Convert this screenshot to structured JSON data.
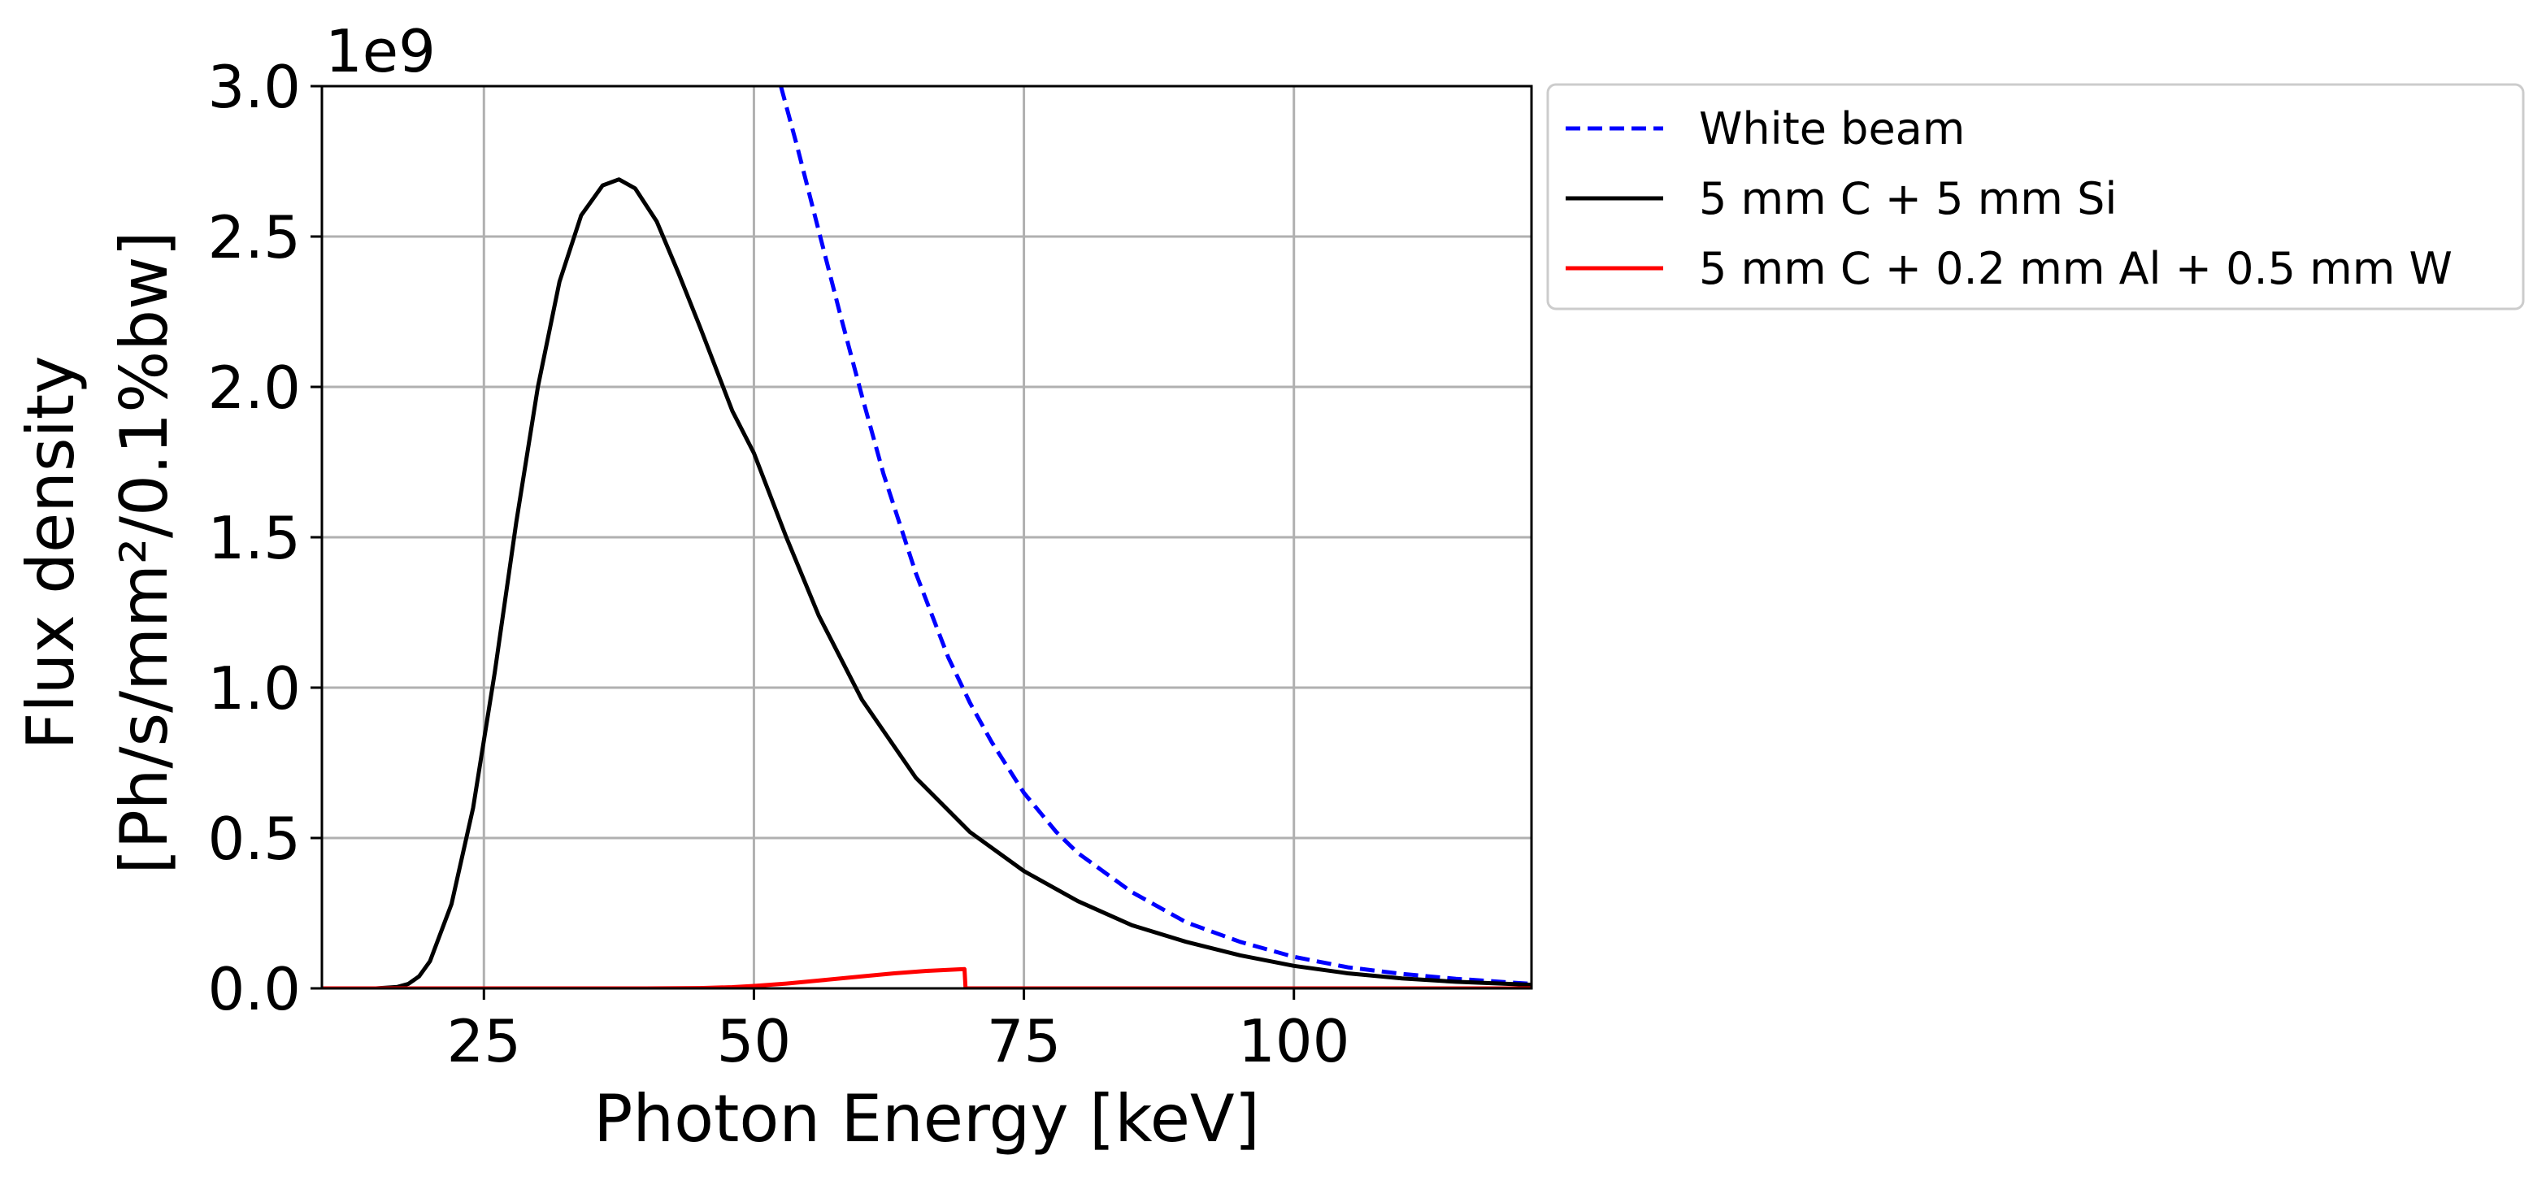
{
  "chart_data": {
    "type": "line",
    "xlabel": "Photon Energy [keV]",
    "ylabel_line1": "Flux density",
    "ylabel_line2": "[Ph/s/mm²/0.1%bw]",
    "y_offset_label": "1e9",
    "xlim": [
      10,
      122
    ],
    "ylim": [
      0,
      3.0
    ],
    "x_ticks": [
      25,
      50,
      75,
      100
    ],
    "x_tick_labels": [
      "25",
      "50",
      "75",
      "100"
    ],
    "y_ticks": [
      0.0,
      0.5,
      1.0,
      1.5,
      2.0,
      2.5,
      3.0
    ],
    "y_tick_labels": [
      "0.0",
      "0.5",
      "1.0",
      "1.5",
      "2.0",
      "2.5",
      "3.0"
    ],
    "grid": true,
    "legend_position": "outside-top-right",
    "series": [
      {
        "name": "White beam",
        "color": "#0000ff",
        "style": "dashed",
        "x": [
          52.5,
          54,
          56,
          58,
          60,
          62,
          65,
          68,
          70,
          72,
          75,
          78,
          80,
          85,
          90,
          95,
          100,
          105,
          110,
          115,
          122
        ],
        "y": [
          3.0,
          2.8,
          2.52,
          2.24,
          1.97,
          1.71,
          1.38,
          1.1,
          0.95,
          0.82,
          0.65,
          0.52,
          0.45,
          0.32,
          0.22,
          0.155,
          0.105,
          0.07,
          0.048,
          0.032,
          0.015
        ]
      },
      {
        "name": "5 mm C + 5 mm Si",
        "color": "#000000",
        "style": "solid",
        "x": [
          10,
          15,
          17,
          18,
          19,
          20,
          22,
          24,
          26,
          28,
          30,
          32,
          34,
          36,
          37.5,
          39,
          41,
          43,
          45,
          48,
          50,
          53,
          56,
          60,
          65,
          70,
          75,
          80,
          85,
          90,
          95,
          100,
          105,
          110,
          115,
          122
        ],
        "y": [
          0.0,
          0.0,
          0.005,
          0.015,
          0.04,
          0.09,
          0.28,
          0.6,
          1.05,
          1.55,
          2.0,
          2.35,
          2.57,
          2.67,
          2.69,
          2.66,
          2.55,
          2.38,
          2.2,
          1.92,
          1.78,
          1.5,
          1.24,
          0.96,
          0.7,
          0.52,
          0.39,
          0.29,
          0.21,
          0.155,
          0.11,
          0.075,
          0.05,
          0.033,
          0.022,
          0.012
        ]
      },
      {
        "name": "5 mm C + 0.2 mm Al + 0.5 mm W",
        "color": "#ff0000",
        "style": "solid",
        "x": [
          10,
          40,
          45,
          48,
          50,
          53,
          56,
          60,
          63,
          66,
          69.5,
          69.6,
          122
        ],
        "y": [
          0.0,
          0.0,
          0.001,
          0.004,
          0.008,
          0.016,
          0.026,
          0.04,
          0.05,
          0.058,
          0.064,
          0.0,
          0.0
        ]
      }
    ]
  }
}
